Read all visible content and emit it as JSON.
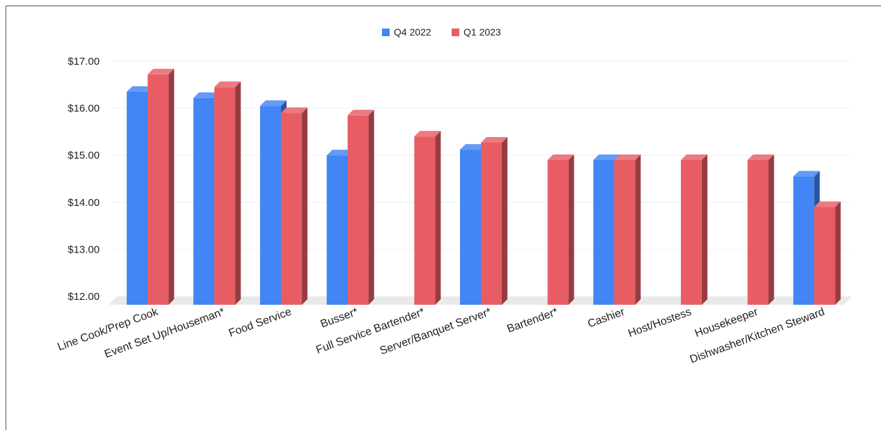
{
  "chart_data": {
    "type": "bar",
    "title": "",
    "xlabel": "",
    "ylabel": "",
    "ylim": [
      12,
      17
    ],
    "yticks": [
      "$12.00",
      "$13.00",
      "$14.00",
      "$15.00",
      "$16.00",
      "$17.00"
    ],
    "ytick_values": [
      12,
      13,
      14,
      15,
      16,
      17
    ],
    "grid": true,
    "legend_position": "top-center",
    "categories": [
      "Line Cook/Prep Cook",
      "Event Set Up/Houseman*",
      "Food Service",
      "Busser*",
      "Full Service Bartender*",
      "Server/Banquet Server*",
      "Bartender*",
      "Cashier",
      "Host/Hostess",
      "Housekeeper",
      "Dishwasher/Kitchen Steward"
    ],
    "series": [
      {
        "name": "Q4 2022",
        "color": "#4285f4",
        "values": [
          16.35,
          16.22,
          16.05,
          15.0,
          null,
          15.12,
          null,
          14.9,
          null,
          null,
          14.55
        ]
      },
      {
        "name": "Q1 2023",
        "color": "#e85d64",
        "values": [
          16.72,
          16.45,
          15.9,
          15.85,
          15.4,
          15.27,
          14.9,
          14.9,
          14.9,
          14.9,
          13.9
        ]
      }
    ]
  }
}
